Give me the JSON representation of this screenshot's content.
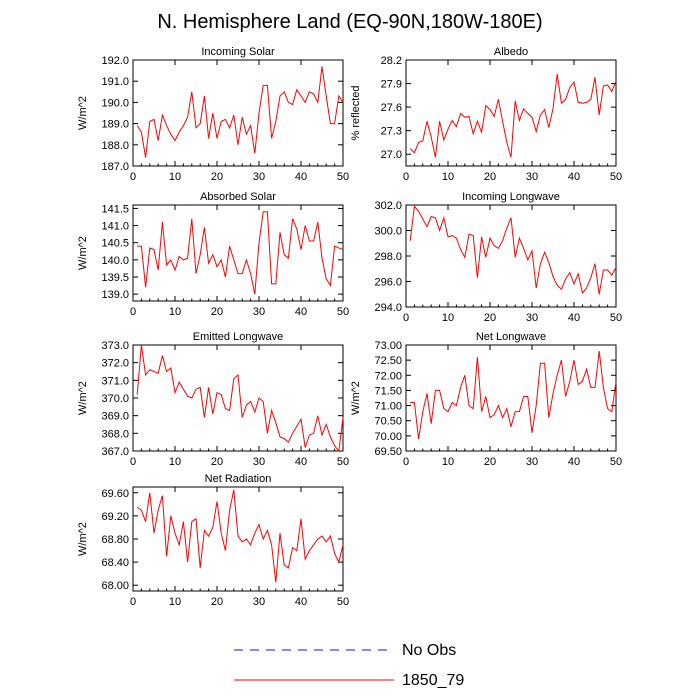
{
  "figure_title": "N. Hemisphere Land (EQ-90N,180W-180E)",
  "legend": [
    {
      "label": "No Obs",
      "color": "#1a1aa6",
      "style": "dashed"
    },
    {
      "label": "1850_79",
      "color": "#ff0000",
      "style": "solid"
    }
  ],
  "chart_data": [
    {
      "type": "line",
      "title": "Incoming Solar",
      "ylabel": "W/m^2",
      "xlim": [
        0,
        50
      ],
      "ylim": [
        187.0,
        192.0
      ],
      "xticks": [
        0,
        10,
        20,
        30,
        40,
        50
      ],
      "yticks": [
        "187.0",
        "188.0",
        "189.0",
        "190.0",
        "191.0",
        "192.0"
      ],
      "series": [
        {
          "name": "1850_79",
          "color": "#ff0000",
          "x": [
            1,
            2,
            3,
            4,
            5,
            6,
            7,
            8,
            9,
            10,
            11,
            12,
            13,
            14,
            15,
            16,
            17,
            18,
            19,
            20,
            21,
            22,
            23,
            24,
            25,
            26,
            27,
            28,
            29,
            30,
            31,
            32,
            33,
            34,
            35,
            36,
            37,
            38,
            39,
            40,
            41,
            42,
            43,
            44,
            45,
            46,
            47,
            48,
            49,
            50
          ],
          "values": [
            188.9,
            188.6,
            187.4,
            189.1,
            189.2,
            188.2,
            189.4,
            188.9,
            188.5,
            188.2,
            188.6,
            188.9,
            189.3,
            190.5,
            188.8,
            189.0,
            190.3,
            188.3,
            189.5,
            188.3,
            189.1,
            189.2,
            188.8,
            189.4,
            188.0,
            189.3,
            188.5,
            188.9,
            187.6,
            189.5,
            190.8,
            190.8,
            188.3,
            189.1,
            190.3,
            190.5,
            190.0,
            189.9,
            190.6,
            190.3,
            190.0,
            190.5,
            190.4,
            190.0,
            191.7,
            190.3,
            189.0,
            189.0,
            190.3,
            190.0
          ]
        }
      ]
    },
    {
      "type": "line",
      "title": "Albedo",
      "ylabel": "% reflected",
      "xlim": [
        0,
        50
      ],
      "ylim": [
        26.85,
        28.2
      ],
      "xticks": [
        0,
        10,
        20,
        30,
        40,
        50
      ],
      "yticks": [
        "27.0",
        "27.3",
        "27.6",
        "27.9",
        "28.2"
      ],
      "series": [
        {
          "name": "1850_79",
          "color": "#ff0000",
          "x": [
            1,
            2,
            3,
            4,
            5,
            6,
            7,
            8,
            9,
            10,
            11,
            12,
            13,
            14,
            15,
            16,
            17,
            18,
            19,
            20,
            21,
            22,
            23,
            24,
            25,
            26,
            27,
            28,
            29,
            30,
            31,
            32,
            33,
            34,
            35,
            36,
            37,
            38,
            39,
            40,
            41,
            42,
            43,
            44,
            45,
            46,
            47,
            48,
            49,
            50
          ],
          "values": [
            27.07,
            27.02,
            27.15,
            27.17,
            27.42,
            27.22,
            26.96,
            27.42,
            27.18,
            27.32,
            27.43,
            27.35,
            27.52,
            27.47,
            27.48,
            27.26,
            27.42,
            27.28,
            27.62,
            27.57,
            27.48,
            27.7,
            27.42,
            27.15,
            26.96,
            27.68,
            27.43,
            27.58,
            27.52,
            27.47,
            27.29,
            27.5,
            27.57,
            27.34,
            27.58,
            28.02,
            27.65,
            27.7,
            27.85,
            27.92,
            27.66,
            27.65,
            27.66,
            27.7,
            27.98,
            27.5,
            27.87,
            27.88,
            27.8,
            27.93
          ]
        }
      ]
    },
    {
      "type": "line",
      "title": "Absorbed Solar",
      "ylabel": "W/m^2",
      "xlim": [
        0,
        50
      ],
      "ylim": [
        138.8,
        141.6
      ],
      "xticks": [
        0,
        10,
        20,
        30,
        40,
        50
      ],
      "yticks": [
        "139.0",
        "139.5",
        "140.0",
        "140.5",
        "141.0",
        "141.5"
      ],
      "series": [
        {
          "name": "1850_79",
          "color": "#ff0000",
          "x": [
            1,
            2,
            3,
            4,
            5,
            6,
            7,
            8,
            9,
            10,
            11,
            12,
            13,
            14,
            15,
            16,
            17,
            18,
            19,
            20,
            21,
            22,
            23,
            24,
            25,
            26,
            27,
            28,
            29,
            30,
            31,
            32,
            33,
            34,
            35,
            36,
            37,
            38,
            39,
            40,
            41,
            42,
            43,
            44,
            45,
            46,
            47,
            48,
            49,
            50
          ],
          "values": [
            140.4,
            140.4,
            139.2,
            140.35,
            140.3,
            139.7,
            141.1,
            139.85,
            140.0,
            139.7,
            140.1,
            140.0,
            140.05,
            141.2,
            139.6,
            140.15,
            140.95,
            139.9,
            140.15,
            139.8,
            140.0,
            139.5,
            140.4,
            140.0,
            139.6,
            139.6,
            140.0,
            139.6,
            139.0,
            140.5,
            141.4,
            141.4,
            139.3,
            139.3,
            140.8,
            140.15,
            140.05,
            141.2,
            140.9,
            140.3,
            141.0,
            140.55,
            140.55,
            141.1,
            140.05,
            139.45,
            139.25,
            140.4,
            140.35,
            140.3
          ]
        }
      ]
    },
    {
      "type": "line",
      "title": "Incoming Longwave",
      "ylabel": "",
      "xlim": [
        0,
        50
      ],
      "ylim": [
        294.0,
        302.0
      ],
      "xticks": [
        0,
        10,
        20,
        30,
        40,
        50
      ],
      "yticks": [
        "294.0",
        "296.0",
        "298.0",
        "300.0",
        "302.0"
      ],
      "series": [
        {
          "name": "1850_79",
          "color": "#ff0000",
          "x": [
            1,
            2,
            3,
            4,
            5,
            6,
            7,
            8,
            9,
            10,
            11,
            12,
            13,
            14,
            15,
            16,
            17,
            18,
            19,
            20,
            21,
            22,
            23,
            24,
            25,
            26,
            27,
            28,
            29,
            30,
            31,
            32,
            33,
            34,
            35,
            36,
            37,
            38,
            39,
            40,
            41,
            42,
            43,
            44,
            45,
            46,
            47,
            48,
            49,
            50
          ],
          "values": [
            299.2,
            301.9,
            301.5,
            300.9,
            300.3,
            301.1,
            301.0,
            300.0,
            301.0,
            299.5,
            299.6,
            299.4,
            298.5,
            297.9,
            299.7,
            299.6,
            296.3,
            299.5,
            297.9,
            299.4,
            298.8,
            298.6,
            299.2,
            300.2,
            301.0,
            297.9,
            299.4,
            298.6,
            297.7,
            298.4,
            295.5,
            297.4,
            298.3,
            297.5,
            296.4,
            295.7,
            295.4,
            296.2,
            296.7,
            295.8,
            296.6,
            295.1,
            295.5,
            296.3,
            297.4,
            295.0,
            296.9,
            296.9,
            296.5,
            297.1
          ]
        }
      ]
    },
    {
      "type": "line",
      "title": "Emitted Longwave",
      "ylabel": "W/m^2",
      "xlim": [
        0,
        50
      ],
      "ylim": [
        367.0,
        373.0
      ],
      "xticks": [
        0,
        10,
        20,
        30,
        40,
        50
      ],
      "yticks": [
        "367.0",
        "368.0",
        "369.0",
        "370.0",
        "371.0",
        "372.0",
        "373.0"
      ],
      "series": [
        {
          "name": "1850_79",
          "color": "#ff0000",
          "x": [
            1,
            2,
            3,
            4,
            5,
            6,
            7,
            8,
            9,
            10,
            11,
            12,
            13,
            14,
            15,
            16,
            17,
            18,
            19,
            20,
            21,
            22,
            23,
            24,
            25,
            26,
            27,
            28,
            29,
            30,
            31,
            32,
            33,
            34,
            35,
            36,
            37,
            38,
            39,
            40,
            41,
            42,
            43,
            44,
            45,
            46,
            47,
            48,
            49,
            50
          ],
          "values": [
            370.2,
            373.0,
            371.3,
            371.6,
            371.5,
            371.4,
            372.4,
            371.5,
            371.7,
            370.3,
            370.9,
            370.5,
            370.1,
            370.0,
            370.5,
            370.6,
            368.9,
            370.6,
            369.1,
            370.3,
            370.2,
            369.4,
            369.3,
            371.1,
            371.3,
            368.9,
            369.6,
            369.8,
            369.2,
            370.0,
            369.8,
            368.0,
            369.3,
            368.6,
            367.8,
            367.7,
            367.5,
            368.0,
            368.4,
            368.8,
            367.2,
            367.9,
            368.0,
            369.0,
            367.9,
            368.5,
            367.8,
            367.3,
            367.0,
            368.9
          ]
        }
      ]
    },
    {
      "type": "line",
      "title": "Net Longwave",
      "ylabel": "W/m^2",
      "xlim": [
        0,
        50
      ],
      "ylim": [
        69.5,
        73.0
      ],
      "xticks": [
        0,
        10,
        20,
        30,
        40,
        50
      ],
      "yticks": [
        "69.50",
        "70.00",
        "70.50",
        "71.00",
        "71.50",
        "72.00",
        "72.50",
        "73.00"
      ],
      "series": [
        {
          "name": "1850_79",
          "color": "#ff0000",
          "x": [
            1,
            2,
            3,
            4,
            5,
            6,
            7,
            8,
            9,
            10,
            11,
            12,
            13,
            14,
            15,
            16,
            17,
            18,
            19,
            20,
            21,
            22,
            23,
            24,
            25,
            26,
            27,
            28,
            29,
            30,
            31,
            32,
            33,
            34,
            35,
            36,
            37,
            38,
            39,
            40,
            41,
            42,
            43,
            44,
            45,
            46,
            47,
            48,
            49,
            50
          ],
          "values": [
            71.1,
            71.1,
            69.9,
            70.8,
            71.4,
            70.4,
            71.5,
            71.5,
            70.9,
            70.8,
            71.1,
            71.0,
            71.6,
            72.0,
            71.0,
            70.9,
            72.6,
            70.8,
            71.3,
            70.6,
            70.7,
            71.0,
            70.6,
            70.9,
            70.3,
            70.8,
            70.8,
            71.3,
            71.3,
            70.1,
            71.0,
            72.4,
            72.4,
            70.6,
            71.4,
            72.0,
            72.5,
            71.3,
            71.8,
            72.5,
            71.7,
            71.8,
            72.2,
            71.6,
            71.6,
            72.8,
            71.6,
            70.9,
            70.8,
            71.8
          ]
        }
      ]
    },
    {
      "type": "line",
      "title": "Net Radiation",
      "ylabel": "W/m^2",
      "xlim": [
        0,
        50
      ],
      "ylim": [
        67.9,
        69.7
      ],
      "xticks": [
        0,
        10,
        20,
        30,
        40,
        50
      ],
      "yticks": [
        "68.00",
        "68.40",
        "68.80",
        "69.20",
        "69.60"
      ],
      "series": [
        {
          "name": "1850_79",
          "color": "#ff0000",
          "x": [
            1,
            2,
            3,
            4,
            5,
            6,
            7,
            8,
            9,
            10,
            11,
            12,
            13,
            14,
            15,
            16,
            17,
            18,
            19,
            20,
            21,
            22,
            23,
            24,
            25,
            26,
            27,
            28,
            29,
            30,
            31,
            32,
            33,
            34,
            35,
            36,
            37,
            38,
            39,
            40,
            41,
            42,
            43,
            44,
            45,
            46,
            47,
            48,
            49,
            50
          ],
          "values": [
            69.35,
            69.3,
            69.1,
            69.6,
            68.9,
            69.3,
            69.55,
            68.5,
            69.2,
            68.9,
            68.7,
            69.1,
            68.4,
            69.1,
            69.15,
            68.3,
            68.95,
            68.85,
            69.0,
            69.45,
            68.9,
            68.6,
            69.3,
            69.65,
            68.85,
            68.75,
            68.8,
            68.7,
            68.9,
            69.05,
            68.8,
            68.95,
            68.7,
            68.05,
            68.9,
            68.35,
            68.3,
            68.65,
            68.6,
            69.15,
            68.45,
            68.6,
            68.7,
            68.8,
            68.85,
            68.75,
            68.85,
            68.55,
            68.4,
            68.7
          ]
        }
      ]
    }
  ]
}
